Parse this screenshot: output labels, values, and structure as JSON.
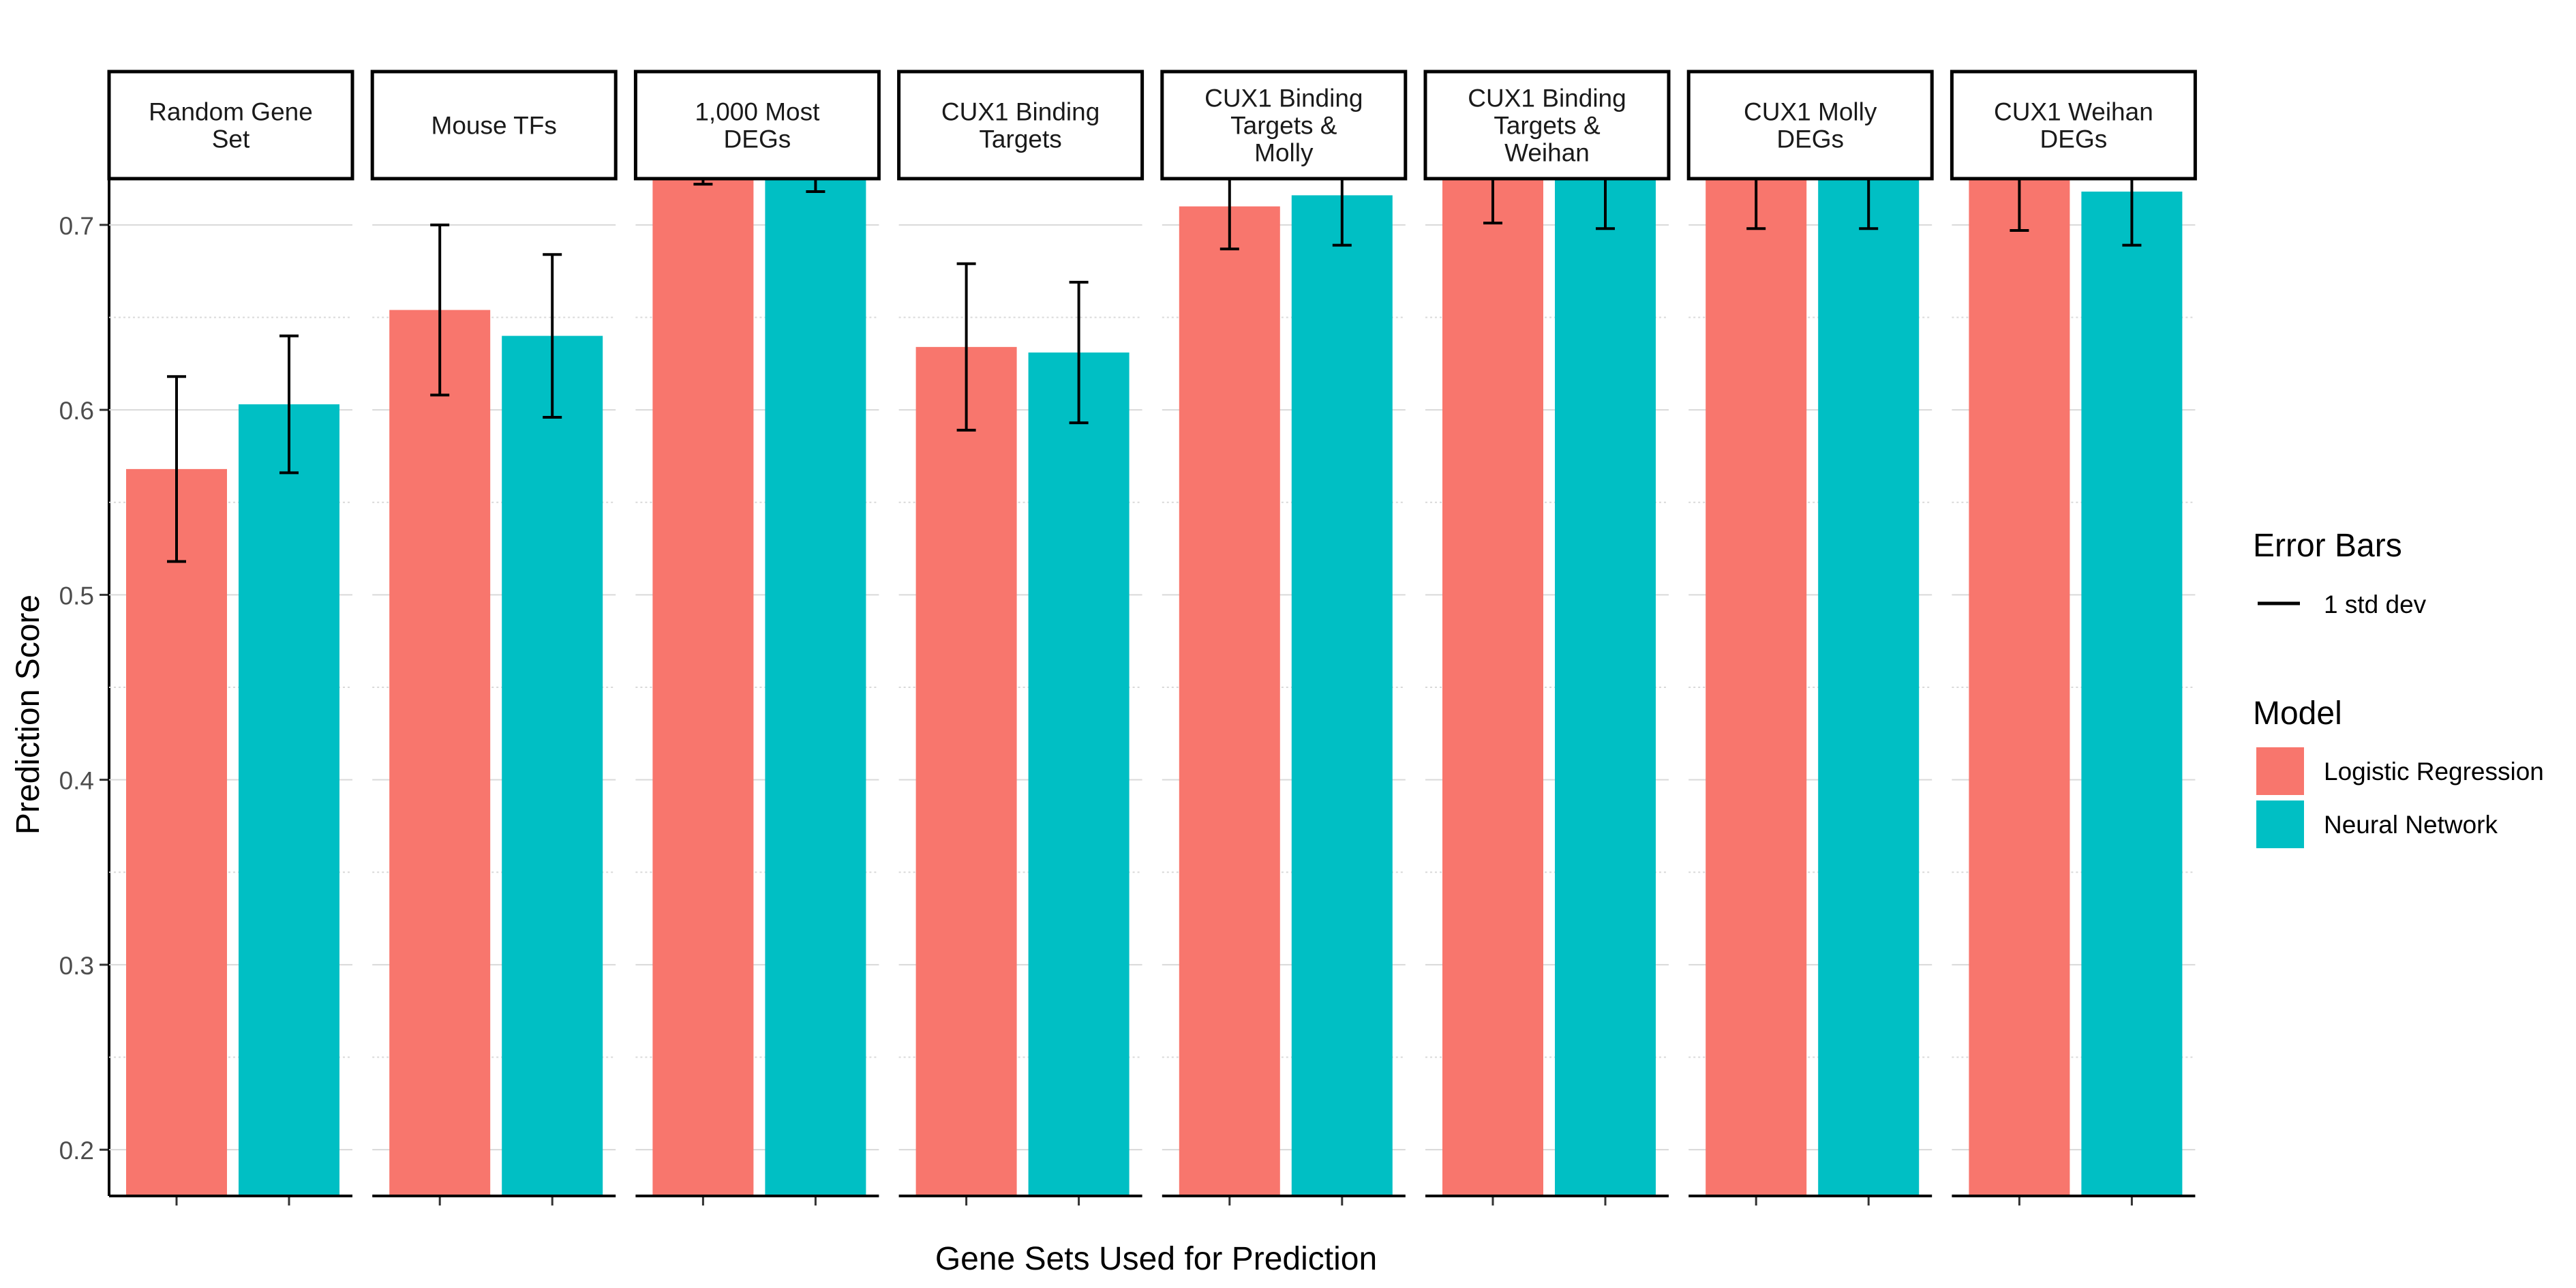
{
  "chart_data": {
    "type": "bar",
    "xlabel": "Gene Sets Used for Prediction",
    "ylabel": "Prediction Score",
    "ylim": [
      0.175,
      0.725
    ],
    "yticks": [
      0.2,
      0.3,
      0.4,
      0.5,
      0.6,
      0.7
    ],
    "ytick_labels": [
      "0.2",
      "0.3",
      "0.4",
      "0.5",
      "0.6",
      "0.7"
    ],
    "grid": true,
    "legend_position": "right",
    "categories": [
      [
        "Random Gene",
        "Set"
      ],
      [
        "Mouse TFs"
      ],
      [
        "1,000 Most",
        "DEGs"
      ],
      [
        "CUX1 Binding",
        "Targets"
      ],
      [
        "CUX1 Binding",
        "Targets &",
        "Molly"
      ],
      [
        "CUX1 Binding",
        "Targets &",
        "Weihan"
      ],
      [
        "CUX1 Molly",
        "DEGs"
      ],
      [
        "CUX1 Weihan",
        "DEGs"
      ]
    ],
    "series": [
      {
        "name": "Logistic Regression",
        "color": "#F8766D",
        "values": [
          0.568,
          0.654,
          0.765,
          0.634,
          0.71,
          0.75,
          0.745,
          0.745
        ],
        "error": [
          0.05,
          0.046,
          0.043,
          0.045,
          0.023,
          0.049,
          0.047,
          0.048
        ]
      },
      {
        "name": "Neural Network",
        "color": "#00BFC4",
        "values": [
          0.603,
          0.64,
          0.76,
          0.631,
          0.716,
          0.75,
          0.745,
          0.718
        ],
        "error": [
          0.037,
          0.044,
          0.042,
          0.038,
          0.027,
          0.052,
          0.047,
          0.029
        ]
      }
    ],
    "legend": {
      "error_title": "Error Bars",
      "error_label": "1 std dev",
      "model_title": "Model"
    }
  }
}
